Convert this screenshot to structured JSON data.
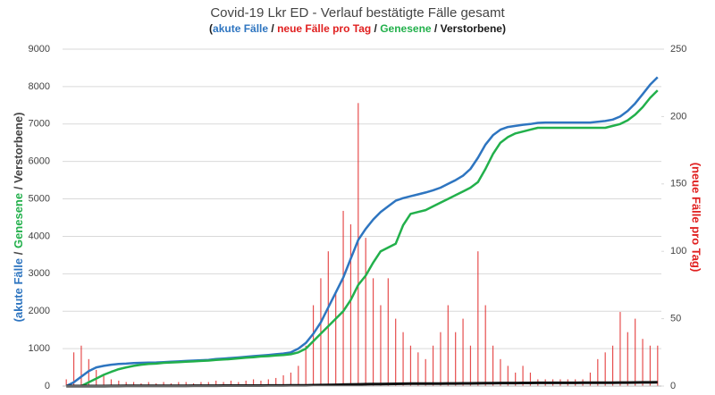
{
  "chart_data": {
    "type": "line_bar",
    "title": "Covid-19 Lkr ED - Verlauf bestätigte Fälle gesamt",
    "subtitle": [
      {
        "text": "(",
        "color": "#1a1a1a"
      },
      {
        "text": "akute Fälle",
        "color": "#2e75c0"
      },
      {
        "text": " / ",
        "color": "#1a1a1a"
      },
      {
        "text": "neue Fälle pro Tag",
        "color": "#e02020"
      },
      {
        "text": " / ",
        "color": "#1a1a1a"
      },
      {
        "text": "Genesene",
        "color": "#22b04b"
      },
      {
        "text": " / ",
        "color": "#1a1a1a"
      },
      {
        "text": "Verstorbene",
        "color": "#1a1a1a"
      },
      {
        "text": ")",
        "color": "#1a1a1a"
      }
    ],
    "y_label": [
      {
        "text": "(akute Fälle",
        "color": "#2e75c0"
      },
      {
        "text": " / ",
        "color": "#444444"
      },
      {
        "text": "Genesene",
        "color": "#22b04b"
      },
      {
        "text": " / Verstorbene)",
        "color": "#444444"
      }
    ],
    "y2_label": {
      "text": "(neue Fälle pro Tag)",
      "color": "#e02020"
    },
    "categories": [
      null,
      null,
      null,
      null,
      null,
      null,
      null,
      null,
      null,
      null,
      null,
      null,
      null,
      null,
      null,
      null,
      null,
      null,
      null,
      null,
      null,
      null,
      null,
      null,
      null,
      null,
      null,
      null,
      null,
      null,
      null,
      null,
      null,
      null,
      null,
      null,
      null,
      null,
      null,
      null,
      null,
      null,
      null,
      null,
      null,
      null,
      null,
      null,
      null,
      null,
      null,
      null,
      null,
      null,
      null,
      null,
      null,
      null,
      null,
      null,
      null,
      null,
      null,
      null,
      null,
      null,
      null,
      null,
      null,
      null,
      null,
      null,
      null,
      null,
      null,
      null,
      null,
      null,
      null,
      null
    ],
    "ylim": [
      0,
      9000
    ],
    "yticks": [
      0,
      1000,
      2000,
      3000,
      4000,
      5000,
      6000,
      7000,
      8000,
      9000
    ],
    "y2lim": [
      0,
      250
    ],
    "y2ticks": [
      0,
      50,
      100,
      150,
      200,
      250
    ],
    "grid": true,
    "series": [
      {
        "name": "akute Fälle",
        "kind": "line",
        "color": "#2e75c0",
        "values": [
          0,
          100,
          250,
          400,
          500,
          540,
          570,
          590,
          600,
          615,
          620,
          625,
          630,
          640,
          650,
          660,
          670,
          680,
          690,
          700,
          720,
          735,
          750,
          765,
          780,
          800,
          815,
          830,
          850,
          870,
          900,
          1000,
          1150,
          1400,
          1700,
          2100,
          2500,
          2900,
          3400,
          3900,
          4200,
          4450,
          4650,
          4800,
          4950,
          5020,
          5070,
          5120,
          5170,
          5230,
          5300,
          5400,
          5500,
          5620,
          5800,
          6100,
          6450,
          6700,
          6850,
          6920,
          6950,
          6980,
          7000,
          7030,
          7040,
          7040,
          7040,
          7040,
          7040,
          7040,
          7040,
          7060,
          7080,
          7120,
          7200,
          7350,
          7550,
          7800,
          8050,
          8250
        ]
      },
      {
        "name": "Genesene",
        "kind": "line",
        "color": "#22b04b",
        "values": [
          0,
          0,
          0,
          100,
          200,
          300,
          380,
          450,
          500,
          540,
          570,
          590,
          600,
          620,
          630,
          640,
          650,
          660,
          670,
          680,
          700,
          710,
          720,
          740,
          760,
          770,
          790,
          800,
          820,
          830,
          850,
          900,
          1000,
          1200,
          1400,
          1600,
          1800,
          2000,
          2300,
          2700,
          2950,
          3300,
          3600,
          3700,
          3800,
          4300,
          4600,
          4650,
          4700,
          4800,
          4900,
          5000,
          5100,
          5200,
          5300,
          5450,
          5800,
          6200,
          6500,
          6650,
          6750,
          6800,
          6850,
          6900,
          6900,
          6900,
          6900,
          6900,
          6900,
          6900,
          6900,
          6900,
          6900,
          6950,
          7000,
          7100,
          7250,
          7450,
          7700,
          7900
        ]
      },
      {
        "name": "Verstorbene",
        "kind": "line",
        "color": "#111111",
        "values": [
          0,
          0,
          0,
          0,
          0,
          0,
          2,
          3,
          4,
          5,
          5,
          6,
          6,
          7,
          7,
          8,
          8,
          9,
          9,
          10,
          10,
          11,
          11,
          12,
          12,
          13,
          13,
          14,
          14,
          15,
          16,
          18,
          20,
          23,
          26,
          30,
          34,
          38,
          42,
          46,
          50,
          53,
          56,
          58,
          60,
          62,
          64,
          65,
          66,
          67,
          68,
          69,
          70,
          71,
          72,
          74,
          76,
          78,
          80,
          81,
          82,
          83,
          84,
          85,
          85,
          86,
          86,
          87,
          87,
          88,
          88,
          89,
          90,
          91,
          92,
          94,
          96,
          97,
          99,
          100
        ]
      },
      {
        "name": "neue Fälle pro Tag",
        "kind": "bar",
        "axis": "y2",
        "color": "#e02020",
        "values": [
          5,
          25,
          30,
          20,
          12,
          8,
          5,
          4,
          3,
          3,
          2,
          3,
          2,
          3,
          2,
          3,
          3,
          2,
          3,
          3,
          4,
          3,
          4,
          3,
          4,
          5,
          4,
          5,
          6,
          8,
          10,
          15,
          30,
          60,
          80,
          100,
          70,
          130,
          120,
          210,
          110,
          80,
          60,
          80,
          50,
          40,
          30,
          25,
          20,
          30,
          40,
          60,
          40,
          50,
          30,
          100,
          60,
          30,
          20,
          15,
          10,
          15,
          10,
          5,
          5,
          5,
          5,
          5,
          5,
          5,
          10,
          20,
          25,
          30,
          55,
          40,
          50,
          35,
          30,
          30
        ]
      }
    ]
  }
}
